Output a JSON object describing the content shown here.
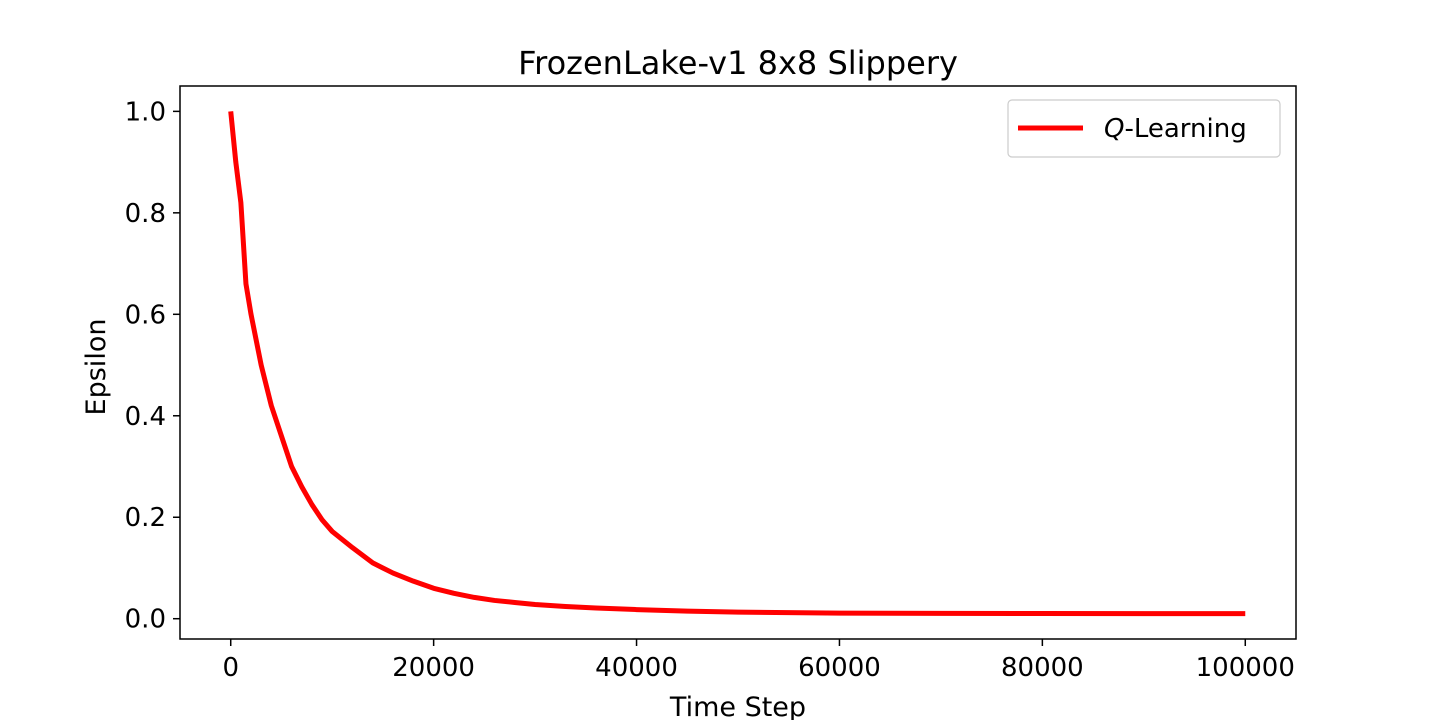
{
  "chart_data": {
    "type": "line",
    "title": "FrozenLake-v1 8x8 Slippery",
    "xlabel": "Time Step",
    "ylabel": "Epsilon",
    "xlim": [
      -5000,
      105000
    ],
    "ylim": [
      -0.04,
      1.05
    ],
    "xticks": [
      0,
      20000,
      40000,
      60000,
      80000,
      100000
    ],
    "xtick_labels": [
      "0",
      "20000",
      "40000",
      "60000",
      "80000",
      "100000"
    ],
    "yticks": [
      0.0,
      0.2,
      0.4,
      0.6,
      0.8,
      1.0
    ],
    "ytick_labels": [
      "0.0",
      "0.2",
      "0.4",
      "0.6",
      "0.8",
      "1.0"
    ],
    "grid": false,
    "legend_position": "top-right",
    "series": [
      {
        "name": "Q-Learning",
        "name_italic_part": "Q",
        "name_rest": "-Learning",
        "color": "#ff0000",
        "x": [
          0,
          500,
          1000,
          1500,
          2000,
          3000,
          4000,
          5000,
          6000,
          7000,
          8000,
          9000,
          10000,
          12000,
          14000,
          16000,
          18000,
          20000,
          22000,
          24000,
          26000,
          28000,
          30000,
          33000,
          36000,
          40000,
          45000,
          50000,
          55000,
          60000,
          70000,
          80000,
          90000,
          100000
        ],
        "y": [
          1.0,
          0.9,
          0.82,
          0.66,
          0.6,
          0.5,
          0.42,
          0.36,
          0.3,
          0.26,
          0.225,
          0.195,
          0.172,
          0.14,
          0.11,
          0.09,
          0.074,
          0.06,
          0.05,
          0.042,
          0.036,
          0.032,
          0.028,
          0.024,
          0.021,
          0.018,
          0.015,
          0.013,
          0.012,
          0.011,
          0.0105,
          0.0102,
          0.0101,
          0.01
        ]
      }
    ]
  }
}
